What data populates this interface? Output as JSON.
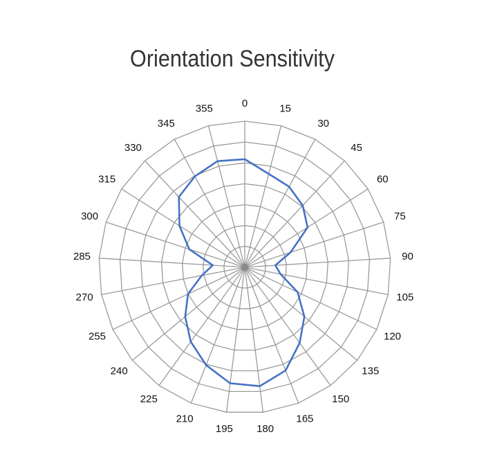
{
  "chart_data": {
    "type": "radar",
    "title": "Orientation Sensitivity",
    "categories": [
      "0",
      "15",
      "30",
      "45",
      "60",
      "75",
      "90",
      "105",
      "120",
      "135",
      "150",
      "165",
      "180",
      "195",
      "210",
      "225",
      "240",
      "255",
      "270",
      "285",
      "300",
      "315",
      "330",
      "345",
      "355"
    ],
    "rmax": 10,
    "ring_count": 7,
    "grid": true,
    "legend": "none",
    "series": [
      {
        "color": "#4472c4",
        "values": [
          7.4,
          6.6,
          6.3,
          5.8,
          5.1,
          3.3,
          2.1,
          2.5,
          4.0,
          5.3,
          6.4,
          7.6,
          8.2,
          8.0,
          7.2,
          6.3,
          5.3,
          4.3,
          3.0,
          2.2,
          4.0,
          5.3,
          6.6,
          7.1,
          7.5
        ]
      }
    ]
  }
}
